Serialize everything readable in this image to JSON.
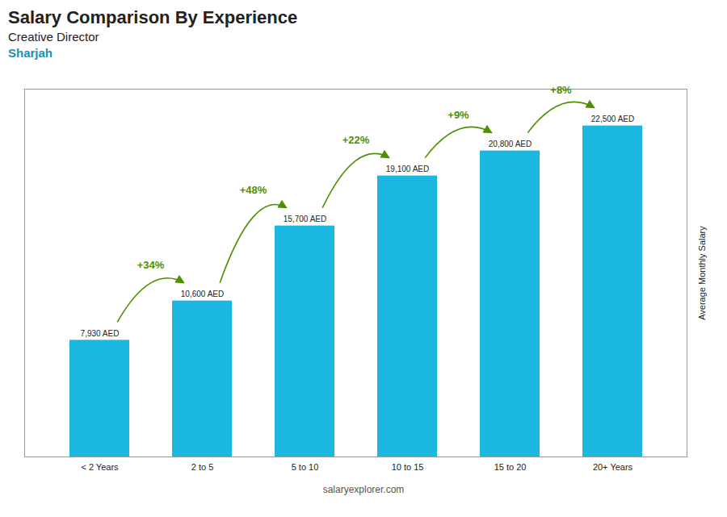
{
  "chart_data": {
    "type": "bar",
    "title": "Salary Comparison By Experience",
    "subtitle": "Creative Director",
    "city": "Sharjah",
    "ylabel": "Average Monthly Salary",
    "caption": "salaryexplorer.com",
    "categories": [
      "< 2 Years",
      "2 to 5",
      "5 to 10",
      "10 to 15",
      "15 to 20",
      "20+ Years"
    ],
    "values": [
      7930,
      10600,
      15700,
      19100,
      20800,
      22500
    ],
    "value_labels": [
      "7,930 AED",
      "10,600 AED",
      "15,700 AED",
      "19,100 AED",
      "20,800 AED",
      "22,500 AED"
    ],
    "data_labels": true,
    "color": "#1ab8e0",
    "ylim": [
      0,
      25000
    ],
    "tick_labels": "x",
    "grid": false,
    "annotations": [
      {
        "text": "+34%",
        "from": "< 2 Years",
        "to": "2 to 5"
      },
      {
        "text": "+48%",
        "from": "2 to 5",
        "to": "5 to 10"
      },
      {
        "text": "+22%",
        "from": "5 to 10",
        "to": "10 to 15"
      },
      {
        "text": "+9%",
        "from": "10 to 15",
        "to": "15 to 20"
      },
      {
        "text": "+8%",
        "from": "15 to 20",
        "to": "20+ Years"
      }
    ]
  }
}
